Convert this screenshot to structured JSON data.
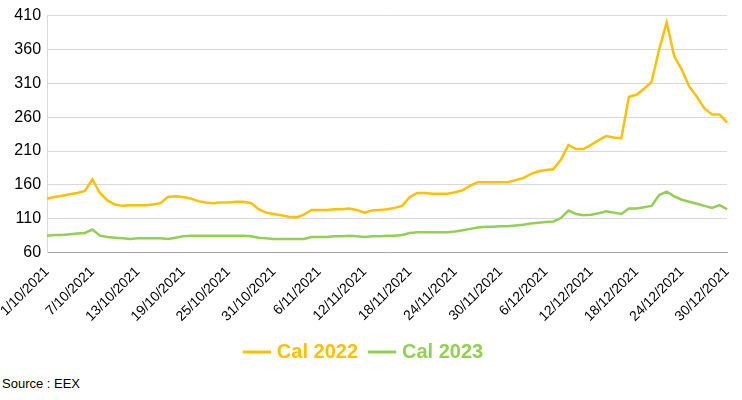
{
  "chart_data": {
    "type": "line",
    "categories": [
      "1/10/2021",
      null,
      null,
      null,
      null,
      null,
      "7/10/2021",
      null,
      null,
      null,
      null,
      null,
      "13/10/2021",
      null,
      null,
      null,
      null,
      null,
      "19/10/2021",
      null,
      null,
      null,
      null,
      null,
      "25/10/2021",
      null,
      null,
      null,
      null,
      null,
      "31/10/2021",
      null,
      null,
      null,
      null,
      null,
      "6/11/2021",
      null,
      null,
      null,
      null,
      null,
      "12/11/2021",
      null,
      null,
      null,
      null,
      null,
      "18/11/2021",
      null,
      null,
      null,
      null,
      null,
      "24/11/2021",
      null,
      null,
      null,
      null,
      null,
      "30/11/2021",
      null,
      null,
      null,
      null,
      null,
      "6/12/2021",
      null,
      null,
      null,
      null,
      null,
      "12/12/2021",
      null,
      null,
      null,
      null,
      null,
      "18/12/2021",
      null,
      null,
      null,
      null,
      null,
      "24/12/2021",
      null,
      null,
      null,
      null,
      null,
      "30/12/2021"
    ],
    "series": [
      {
        "name": "Cal 2022",
        "color": "#ffc000",
        "values": [
          140,
          142,
          144,
          146,
          148,
          151,
          168,
          148,
          137,
          131,
          129,
          130,
          130,
          130,
          131,
          133,
          142,
          143,
          142,
          140,
          136,
          134,
          133,
          134,
          134,
          135,
          135,
          133,
          124,
          119,
          117,
          115,
          113,
          112,
          116,
          123,
          123,
          123,
          124,
          124,
          125,
          123,
          119,
          122,
          123,
          124,
          126,
          129,
          142,
          148,
          148,
          147,
          147,
          147,
          149,
          152,
          159,
          164,
          164,
          164,
          164,
          164,
          167,
          170,
          176,
          180,
          182,
          183,
          197,
          219,
          213,
          213,
          219,
          226,
          232,
          230,
          229,
          290,
          293,
          302,
          312,
          360,
          400,
          350,
          330,
          305,
          290,
          273,
          264,
          264,
          252
        ]
      },
      {
        "name": "Cal 2023",
        "color": "#92d050",
        "values": [
          85,
          86,
          86,
          87,
          88,
          89,
          94,
          85,
          83,
          82,
          81,
          80,
          81,
          81,
          81,
          81,
          80,
          82,
          84,
          85,
          85,
          85,
          85,
          85,
          85,
          85,
          85,
          84,
          82,
          81,
          80,
          80,
          80,
          80,
          80,
          83,
          83,
          83,
          84,
          84,
          85,
          84,
          83,
          84,
          84,
          85,
          85,
          86,
          89,
          90,
          90,
          90,
          90,
          90,
          91,
          93,
          95,
          97,
          98,
          98,
          99,
          99,
          100,
          101,
          103,
          104,
          105,
          106,
          111,
          122,
          117,
          115,
          116,
          118,
          121,
          119,
          117,
          125,
          125,
          127,
          129,
          145,
          150,
          143,
          138,
          135,
          132,
          129,
          126,
          130,
          124
        ]
      }
    ],
    "ylim": [
      60,
      410
    ],
    "yticks": [
      60,
      110,
      160,
      210,
      260,
      310,
      360,
      410
    ],
    "grid": true,
    "legend": "bottom",
    "source": "Source : EEX"
  }
}
